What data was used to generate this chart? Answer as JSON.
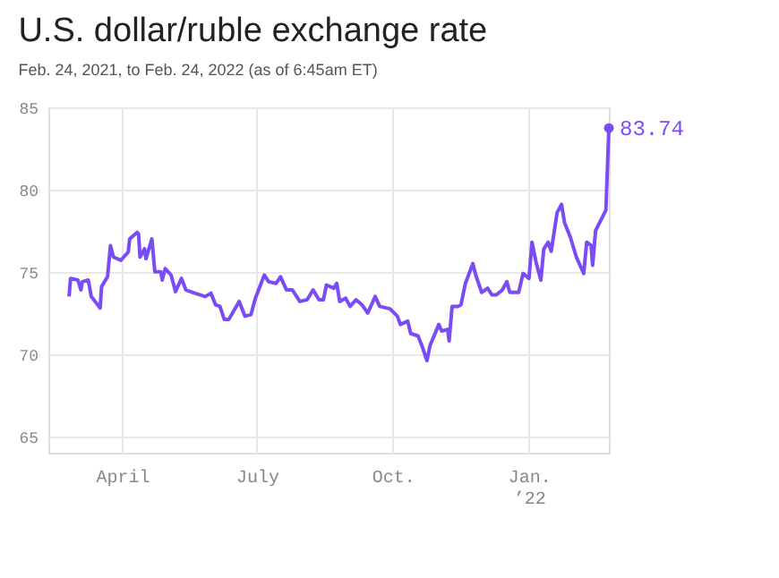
{
  "chart_data": {
    "type": "line",
    "title": "U.S. dollar/ruble exchange rate",
    "subtitle": "Feb. 24, 2021, to Feb. 24, 2022 (as of 6:45am ET)",
    "x": [
      "2021-02-24",
      "2021-02-25",
      "2021-03-02",
      "2021-03-04",
      "2021-03-05",
      "2021-03-09",
      "2021-03-11",
      "2021-03-17",
      "2021-03-18",
      "2021-03-22",
      "2021-03-24",
      "2021-03-26",
      "2021-03-31",
      "2021-04-05",
      "2021-04-06",
      "2021-04-11",
      "2021-04-12",
      "2021-04-13",
      "2021-04-16",
      "2021-04-17",
      "2021-04-21",
      "2021-04-23",
      "2021-04-27",
      "2021-04-28",
      "2021-04-30",
      "2021-05-04",
      "2021-05-07",
      "2021-05-11",
      "2021-05-14",
      "2021-05-20",
      "2021-05-27",
      "2021-05-31",
      "2021-06-03",
      "2021-06-06",
      "2021-06-09",
      "2021-06-12",
      "2021-06-19",
      "2021-06-23",
      "2021-06-27",
      "2021-06-30",
      "2021-07-06",
      "2021-07-09",
      "2021-07-14",
      "2021-07-17",
      "2021-07-21",
      "2021-07-25",
      "2021-07-30",
      "2021-08-04",
      "2021-08-08",
      "2021-08-12",
      "2021-08-15",
      "2021-08-17",
      "2021-08-22",
      "2021-08-24",
      "2021-08-26",
      "2021-08-30",
      "2021-09-02",
      "2021-09-06",
      "2021-09-10",
      "2021-09-14",
      "2021-09-19",
      "2021-09-22",
      "2021-09-29",
      "2021-10-04",
      "2021-10-06",
      "2021-10-11",
      "2021-10-13",
      "2021-10-18",
      "2021-10-21",
      "2021-10-24",
      "2021-10-26",
      "2021-11-01",
      "2021-11-03",
      "2021-11-07",
      "2021-11-08",
      "2021-11-10",
      "2021-11-14",
      "2021-11-16",
      "2021-11-19",
      "2021-11-24",
      "2021-11-26",
      "2021-11-30",
      "2021-12-04",
      "2021-12-07",
      "2021-12-10",
      "2021-12-14",
      "2021-12-17",
      "2021-12-19",
      "2021-12-25",
      "2021-12-28",
      "2022-01-01",
      "2022-01-03",
      "2022-01-06",
      "2022-01-09",
      "2022-01-11",
      "2022-01-14",
      "2022-01-16",
      "2022-01-20",
      "2022-01-23",
      "2022-01-25",
      "2022-01-29",
      "2022-02-02",
      "2022-02-07",
      "2022-02-09",
      "2022-02-12",
      "2022-02-13",
      "2022-02-15",
      "2022-02-22",
      "2022-02-24"
    ],
    "series": [
      {
        "color": "#7b4cf5",
        "values": [
          73.5,
          74.6,
          74.5,
          73.9,
          74.4,
          74.5,
          73.5,
          72.8,
          74.1,
          74.7,
          76.6,
          75.9,
          75.7,
          76.2,
          77.0,
          77.4,
          77.3,
          75.9,
          76.4,
          75.8,
          77.0,
          75.0,
          75.0,
          74.5,
          75.2,
          74.8,
          73.8,
          74.6,
          73.9,
          73.7,
          73.5,
          73.7,
          73.0,
          72.9,
          72.1,
          72.1,
          73.2,
          72.3,
          72.4,
          73.4,
          74.8,
          74.4,
          74.3,
          74.7,
          73.9,
          73.9,
          73.2,
          73.3,
          73.9,
          73.3,
          73.3,
          74.2,
          74.0,
          74.3,
          73.2,
          73.4,
          72.9,
          73.3,
          73.0,
          72.5,
          73.5,
          72.9,
          72.75,
          72.3,
          71.8,
          72.0,
          71.25,
          71.1,
          70.4,
          69.6,
          70.5,
          71.8,
          71.4,
          71.5,
          70.8,
          72.9,
          72.9,
          73.0,
          74.3,
          75.5,
          74.8,
          73.75,
          74.0,
          73.6,
          73.6,
          73.9,
          74.4,
          73.75,
          73.75,
          74.9,
          74.6,
          76.8,
          75.5,
          74.5,
          76.4,
          76.8,
          76.25,
          78.6,
          79.1,
          78.0,
          77.1,
          75.9,
          74.9,
          76.8,
          76.6,
          75.4,
          77.5,
          78.75,
          83.74
        ]
      }
    ],
    "xlim": [
      "2021-02-10",
      "2022-02-24"
    ],
    "xticks": [
      {
        "value": "2021-04-01",
        "label": "April"
      },
      {
        "value": "2021-07-01",
        "label": "July"
      },
      {
        "value": "2021-10-01",
        "label": "Oct."
      },
      {
        "value": "2022-01-01",
        "label": "Jan.\n’22"
      }
    ],
    "ylim": [
      64,
      85
    ],
    "yticks": [
      65,
      70,
      75,
      80,
      85
    ],
    "grid": true,
    "line_style": "solid",
    "annotations": [
      {
        "text": "83.74",
        "x": "2022-02-24",
        "y": 83.74
      }
    ]
  }
}
